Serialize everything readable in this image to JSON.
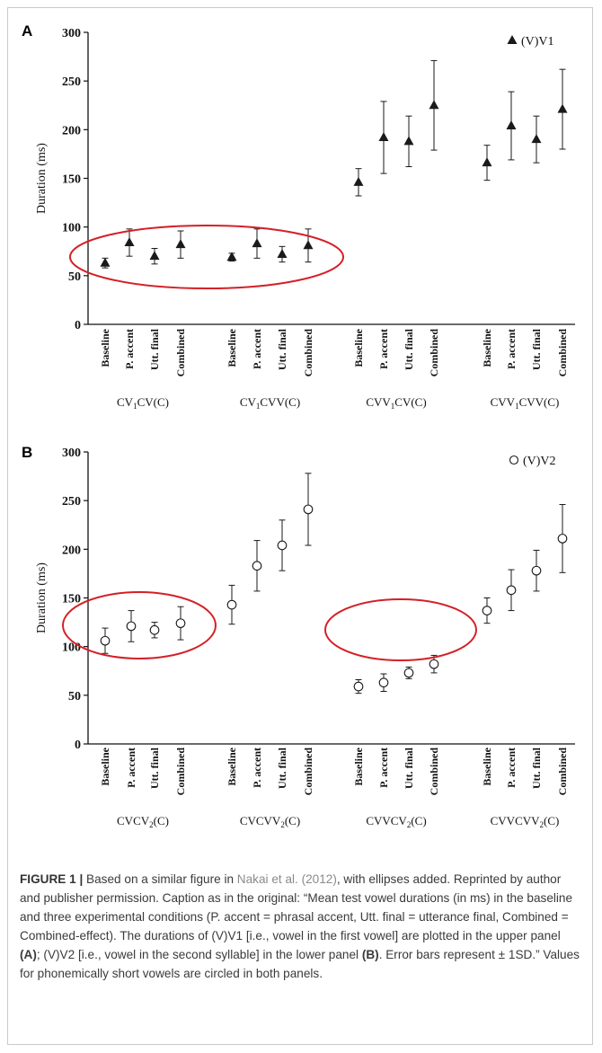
{
  "chart_data": [
    {
      "type": "scatter",
      "panel_label": "A",
      "ylabel": "Duration (ms)",
      "ylim": [
        0,
        300
      ],
      "yticks": [
        0,
        50,
        100,
        150,
        200,
        250,
        300
      ],
      "marker": "filled-triangle",
      "legend": {
        "label": "(V)V1",
        "position": "top-right"
      },
      "conditions": [
        "Baseline",
        "P. accent",
        "Utt. final",
        "Combined"
      ],
      "groups": [
        {
          "name": "CV1CV(C)",
          "label_main": "CV",
          "label_sub": "1",
          "label_rest": "CV(C)",
          "means": [
            63,
            84,
            70,
            82
          ],
          "sd": [
            5,
            14,
            8,
            14
          ]
        },
        {
          "name": "CV1CVV(C)",
          "label_main": "CV",
          "label_sub": "1",
          "label_rest": "CVV(C)",
          "means": [
            69,
            83,
            72,
            81
          ],
          "sd": [
            4,
            15,
            8,
            17
          ]
        },
        {
          "name": "CVV1CV(C)",
          "label_main": "CVV",
          "label_sub": "1",
          "label_rest": "CV(C)",
          "means": [
            146,
            192,
            188,
            225
          ],
          "sd": [
            14,
            37,
            26,
            46
          ]
        },
        {
          "name": "CVV1CVV(C)",
          "label_main": "CVV",
          "label_sub": "1",
          "label_rest": "CVV(C)",
          "means": [
            166,
            204,
            190,
            221
          ],
          "sd": [
            18,
            35,
            24,
            41
          ]
        }
      ],
      "circled_groups": [
        0,
        1
      ]
    },
    {
      "type": "scatter",
      "panel_label": "B",
      "ylabel": "Duration (ms)",
      "ylim": [
        0,
        300
      ],
      "yticks": [
        0,
        50,
        100,
        150,
        200,
        250,
        300
      ],
      "marker": "open-circle",
      "legend": {
        "label": "(V)V2",
        "position": "top-right"
      },
      "conditions": [
        "Baseline",
        "P. accent",
        "Utt. final",
        "Combined"
      ],
      "groups": [
        {
          "name": "CVCV2(C)",
          "label_main": "CVCV",
          "label_sub": "2",
          "label_rest": "(C)",
          "means": [
            106,
            121,
            117,
            124
          ],
          "sd": [
            13,
            16,
            8,
            17
          ]
        },
        {
          "name": "CVCVV2(C)",
          "label_main": "CVCVV",
          "label_sub": "2",
          "label_rest": "(C)",
          "means": [
            143,
            183,
            204,
            241
          ],
          "sd": [
            20,
            26,
            26,
            37
          ]
        },
        {
          "name": "CVVCV2(C)",
          "label_main": "CVVCV",
          "label_sub": "2",
          "label_rest": "(C)",
          "means": [
            59,
            63,
            73,
            82
          ],
          "sd": [
            7,
            9,
            6,
            9
          ]
        },
        {
          "name": "CVVCVV2(C)",
          "label_main": "CVVCVV",
          "label_sub": "2",
          "label_rest": "(C)",
          "means": [
            137,
            158,
            178,
            211
          ],
          "sd": [
            13,
            21,
            21,
            35
          ]
        }
      ],
      "circled_groups": [
        0,
        2
      ]
    }
  ],
  "caption": {
    "label": "FIGURE 1 |",
    "t1": " Based on a similar figure in ",
    "link": "Nakai et al. (2012)",
    "t2": ", with ellipses added. Reprinted by author and publisher permission. Caption as in the original: “Mean test vowel durations (in ms) in the baseline and three experimental conditions (P. accent = phrasal accent, Utt. final = utterance final, Combined = Combined-effect). The durations of (V)V1 [i.e., vowel in the first vowel] are plotted in the upper panel ",
    "bold_a": "(A)",
    "t3": "; (V)V2 [i.e., vowel in the second syllable] in the lower panel ",
    "bold_b": "(B)",
    "t4": ". Error bars represent ± 1SD.” Values for phonemically short vowels are circled in both panels."
  },
  "colors": {
    "ellipse": "#d42027",
    "marker": "#1a1a1a",
    "axis": "#111111"
  }
}
